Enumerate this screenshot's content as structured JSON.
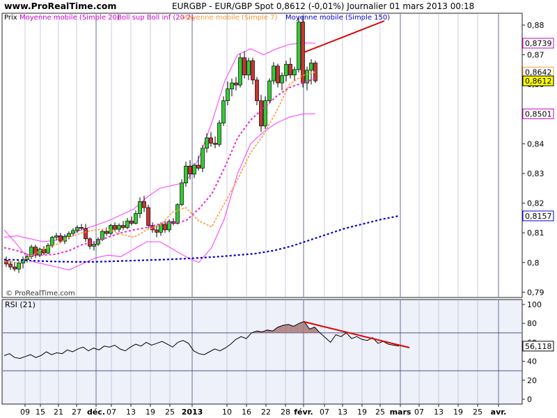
{
  "header": {
    "site": "www.ProRealTime.com",
    "title": "EURGBP - EUR/GBP Spot    0,8612 (-0,01%)     Journalier  01 mars 2013 00:18"
  },
  "price_panel": {
    "legend": [
      {
        "text": "Prix",
        "color": "#000000"
      },
      {
        "text": "Moyenne mobile (Simple 20)",
        "color": "#cc00cc"
      },
      {
        "text": "Boll sup Boll inf (20 2)",
        "color": "#cc00cc"
      },
      {
        "text": "Moyenne mobile (Simple 7)",
        "color": "#ff9933"
      },
      {
        "text": "Moyenne mobile (Simple 150)",
        "color": "#0000cc"
      }
    ],
    "watermark": "© ProRealTime.com",
    "yticks": [
      "0,88",
      "0,87",
      "0,86",
      "0,85",
      "0,84",
      "0,83",
      "0,82",
      "0,81",
      "0,8",
      "0,79"
    ],
    "price_labels": [
      {
        "text": "0,8739",
        "border": "#cc00cc",
        "bg": "#ffffff"
      },
      {
        "text": "0,8642",
        "border": "#ff9933",
        "bg": "#ffffff"
      },
      {
        "text": "0,8612",
        "border": "#000000",
        "bg": "#ffff00"
      },
      {
        "text": "0,8501",
        "border": "#cc00cc",
        "bg": "#ffffff"
      },
      {
        "text": "0,8157",
        "border": "#0000cc",
        "bg": "#ffffff"
      }
    ]
  },
  "rsi_panel": {
    "label": "RSI (21)",
    "yticks": [
      "100",
      "80",
      "60",
      "40",
      "20",
      "0"
    ],
    "value_label": "56,118"
  },
  "xaxis": {
    "ticks": [
      "09",
      "15",
      "21",
      "27",
      "déc.",
      "07",
      "13",
      "19",
      "25",
      "2013",
      "10",
      "16",
      "22",
      "28",
      "févr.",
      "07",
      "13",
      "19",
      "25",
      "mars",
      "07",
      "13",
      "19",
      "25",
      "avr."
    ],
    "bold_ticks": [
      "déc.",
      "2013",
      "févr.",
      "mars",
      "avr."
    ]
  },
  "colors": {
    "panel_bg": "#ffffff",
    "rsi_bg": "#eef0fa",
    "grid": "#a8aecb",
    "bull": "#33cc33",
    "bear": "#cc3333",
    "bollinger": "#ff33ff",
    "sma20": "#ee22cc",
    "sma7": "#ff9933",
    "sma150": "#0000cc",
    "rsi_line": "#000000",
    "trendline": "#dd0000",
    "rsi_fill": "#a87878"
  },
  "chart_data": [
    {
      "type": "candlestick",
      "title": "EURGBP - EUR/GBP Spot",
      "ylim": [
        0.788,
        0.885
      ],
      "last_close": 0.8612,
      "change": "-0,01%",
      "candles": [
        {
          "o": 0.8008,
          "h": 0.802,
          "l": 0.7985,
          "c": 0.7995
        },
        {
          "o": 0.7995,
          "h": 0.8005,
          "l": 0.7975,
          "c": 0.7985
        },
        {
          "o": 0.7985,
          "h": 0.8002,
          "l": 0.797,
          "c": 0.7978
        },
        {
          "o": 0.7978,
          "h": 0.8005,
          "l": 0.7965,
          "c": 0.7998
        },
        {
          "o": 0.7998,
          "h": 0.802,
          "l": 0.798,
          "c": 0.801
        },
        {
          "o": 0.801,
          "h": 0.803,
          "l": 0.8,
          "c": 0.802
        },
        {
          "o": 0.802,
          "h": 0.806,
          "l": 0.8012,
          "c": 0.8052
        },
        {
          "o": 0.8052,
          "h": 0.806,
          "l": 0.8015,
          "c": 0.8025
        },
        {
          "o": 0.8025,
          "h": 0.805,
          "l": 0.8018,
          "c": 0.8045
        },
        {
          "o": 0.8045,
          "h": 0.8055,
          "l": 0.8025,
          "c": 0.8032
        },
        {
          "o": 0.8032,
          "h": 0.8065,
          "l": 0.8028,
          "c": 0.8058
        },
        {
          "o": 0.8058,
          "h": 0.809,
          "l": 0.805,
          "c": 0.8085
        },
        {
          "o": 0.8085,
          "h": 0.81,
          "l": 0.8075,
          "c": 0.809
        },
        {
          "o": 0.809,
          "h": 0.81,
          "l": 0.8065,
          "c": 0.8072
        },
        {
          "o": 0.8072,
          "h": 0.8095,
          "l": 0.8062,
          "c": 0.8088
        },
        {
          "o": 0.8088,
          "h": 0.8105,
          "l": 0.8078,
          "c": 0.8098
        },
        {
          "o": 0.8098,
          "h": 0.8115,
          "l": 0.8088,
          "c": 0.8108
        },
        {
          "o": 0.8108,
          "h": 0.8125,
          "l": 0.81,
          "c": 0.8118
        },
        {
          "o": 0.8118,
          "h": 0.813,
          "l": 0.811,
          "c": 0.8115
        },
        {
          "o": 0.8115,
          "h": 0.813,
          "l": 0.807,
          "c": 0.808
        },
        {
          "o": 0.808,
          "h": 0.8085,
          "l": 0.8045,
          "c": 0.8055
        },
        {
          "o": 0.8055,
          "h": 0.807,
          "l": 0.804,
          "c": 0.8062
        },
        {
          "o": 0.8062,
          "h": 0.8085,
          "l": 0.8055,
          "c": 0.8078
        },
        {
          "o": 0.8078,
          "h": 0.811,
          "l": 0.8072,
          "c": 0.8105
        },
        {
          "o": 0.8105,
          "h": 0.8118,
          "l": 0.809,
          "c": 0.8098
        },
        {
          "o": 0.8098,
          "h": 0.813,
          "l": 0.8092,
          "c": 0.8125
        },
        {
          "o": 0.8125,
          "h": 0.8135,
          "l": 0.8105,
          "c": 0.8112
        },
        {
          "o": 0.8112,
          "h": 0.8132,
          "l": 0.8102,
          "c": 0.8125
        },
        {
          "o": 0.8125,
          "h": 0.814,
          "l": 0.811,
          "c": 0.8118
        },
        {
          "o": 0.8118,
          "h": 0.815,
          "l": 0.8112,
          "c": 0.814
        },
        {
          "o": 0.814,
          "h": 0.8155,
          "l": 0.8125,
          "c": 0.8132
        },
        {
          "o": 0.8132,
          "h": 0.8175,
          "l": 0.8128,
          "c": 0.8165
        },
        {
          "o": 0.8165,
          "h": 0.822,
          "l": 0.815,
          "c": 0.8205
        },
        {
          "o": 0.8205,
          "h": 0.8225,
          "l": 0.817,
          "c": 0.8185
        },
        {
          "o": 0.8185,
          "h": 0.8195,
          "l": 0.8115,
          "c": 0.8125
        },
        {
          "o": 0.8125,
          "h": 0.8135,
          "l": 0.81,
          "c": 0.811
        },
        {
          "o": 0.811,
          "h": 0.8125,
          "l": 0.8085,
          "c": 0.8102
        },
        {
          "o": 0.8102,
          "h": 0.8135,
          "l": 0.809,
          "c": 0.8128
        },
        {
          "o": 0.8128,
          "h": 0.814,
          "l": 0.81,
          "c": 0.811
        },
        {
          "o": 0.811,
          "h": 0.8145,
          "l": 0.8102,
          "c": 0.8138
        },
        {
          "o": 0.8138,
          "h": 0.815,
          "l": 0.8125,
          "c": 0.8132
        },
        {
          "o": 0.8132,
          "h": 0.82,
          "l": 0.8128,
          "c": 0.8195
        },
        {
          "o": 0.8195,
          "h": 0.828,
          "l": 0.819,
          "c": 0.8268
        },
        {
          "o": 0.8268,
          "h": 0.834,
          "l": 0.8255,
          "c": 0.8325
        },
        {
          "o": 0.8325,
          "h": 0.8345,
          "l": 0.828,
          "c": 0.8298
        },
        {
          "o": 0.8298,
          "h": 0.8335,
          "l": 0.8285,
          "c": 0.8328
        },
        {
          "o": 0.8328,
          "h": 0.836,
          "l": 0.831,
          "c": 0.8318
        },
        {
          "o": 0.8318,
          "h": 0.8395,
          "l": 0.8305,
          "c": 0.8385
        },
        {
          "o": 0.8385,
          "h": 0.8435,
          "l": 0.837,
          "c": 0.842
        },
        {
          "o": 0.842,
          "h": 0.844,
          "l": 0.839,
          "c": 0.8402
        },
        {
          "o": 0.8402,
          "h": 0.8425,
          "l": 0.8385,
          "c": 0.8398
        },
        {
          "o": 0.8398,
          "h": 0.848,
          "l": 0.839,
          "c": 0.847
        },
        {
          "o": 0.847,
          "h": 0.856,
          "l": 0.846,
          "c": 0.8545
        },
        {
          "o": 0.8545,
          "h": 0.861,
          "l": 0.853,
          "c": 0.8585
        },
        {
          "o": 0.8585,
          "h": 0.862,
          "l": 0.856,
          "c": 0.8605
        },
        {
          "o": 0.8605,
          "h": 0.8625,
          "l": 0.858,
          "c": 0.8598
        },
        {
          "o": 0.8598,
          "h": 0.8705,
          "l": 0.859,
          "c": 0.869
        },
        {
          "o": 0.869,
          "h": 0.8712,
          "l": 0.862,
          "c": 0.8632
        },
        {
          "o": 0.8632,
          "h": 0.869,
          "l": 0.8615,
          "c": 0.868
        },
        {
          "o": 0.868,
          "h": 0.869,
          "l": 0.86,
          "c": 0.8615
        },
        {
          "o": 0.8615,
          "h": 0.8625,
          "l": 0.853,
          "c": 0.8545
        },
        {
          "o": 0.8545,
          "h": 0.8565,
          "l": 0.844,
          "c": 0.846
        },
        {
          "o": 0.846,
          "h": 0.856,
          "l": 0.845,
          "c": 0.8545
        },
        {
          "o": 0.8545,
          "h": 0.862,
          "l": 0.8535,
          "c": 0.8612
        },
        {
          "o": 0.8612,
          "h": 0.8675,
          "l": 0.86,
          "c": 0.8662
        },
        {
          "o": 0.8662,
          "h": 0.867,
          "l": 0.859,
          "c": 0.8605
        },
        {
          "o": 0.8605,
          "h": 0.864,
          "l": 0.858,
          "c": 0.863
        },
        {
          "o": 0.863,
          "h": 0.868,
          "l": 0.861,
          "c": 0.8668
        },
        {
          "o": 0.8668,
          "h": 0.869,
          "l": 0.862,
          "c": 0.8632
        },
        {
          "o": 0.8632,
          "h": 0.866,
          "l": 0.861,
          "c": 0.865
        },
        {
          "o": 0.865,
          "h": 0.883,
          "l": 0.864,
          "c": 0.881
        },
        {
          "o": 0.881,
          "h": 0.883,
          "l": 0.859,
          "c": 0.8605
        },
        {
          "o": 0.8605,
          "h": 0.866,
          "l": 0.858,
          "c": 0.8648
        },
        {
          "o": 0.8648,
          "h": 0.8685,
          "l": 0.86,
          "c": 0.8672
        },
        {
          "o": 0.8672,
          "h": 0.868,
          "l": 0.8605,
          "c": 0.8612
        }
      ],
      "bollinger_upper": [
        0.8085,
        0.809,
        0.808,
        0.807,
        0.8075,
        0.8095,
        0.811,
        0.8125,
        0.814,
        0.816,
        0.818,
        0.822,
        0.825,
        0.826,
        0.827,
        0.835,
        0.847,
        0.861,
        0.87,
        0.872,
        0.87,
        0.872,
        0.8735,
        0.874,
        0.8739
      ],
      "bollinger_lower": [
        0.811,
        0.806,
        0.8005,
        0.7995,
        0.7985,
        0.7975,
        0.7995,
        0.8015,
        0.8025,
        0.802,
        0.8045,
        0.807,
        0.807,
        0.8045,
        0.802,
        0.8,
        0.805,
        0.815,
        0.83,
        0.84,
        0.844,
        0.847,
        0.849,
        0.85,
        0.8501
      ],
      "sma20": [
        0.805,
        0.804,
        0.8025,
        0.8025,
        0.8028,
        0.804,
        0.806,
        0.807,
        0.8085,
        0.81,
        0.811,
        0.8118,
        0.813,
        0.8135,
        0.814,
        0.818,
        0.823,
        0.832,
        0.842,
        0.848,
        0.852,
        0.856,
        0.859,
        0.8605,
        0.862
      ],
      "sma7": [
        0.8005,
        0.8,
        0.802,
        0.8045,
        0.806,
        0.8085,
        0.81,
        0.811,
        0.8112,
        0.8095,
        0.8085,
        0.811,
        0.8125,
        0.817,
        0.8185,
        0.814,
        0.812,
        0.82,
        0.828,
        0.837,
        0.843,
        0.851,
        0.86,
        0.863,
        0.8642
      ],
      "sma150": [
        0.801,
        0.8008,
        0.8005,
        0.8003,
        0.8002,
        0.8002,
        0.8004,
        0.8006,
        0.8008,
        0.801,
        0.8013,
        0.8016,
        0.802,
        0.8025,
        0.803,
        0.804,
        0.8055,
        0.8075,
        0.8095,
        0.8115,
        0.813,
        0.8145,
        0.8157
      ]
    },
    {
      "type": "line",
      "title": "RSI (21)",
      "ylim": [
        0,
        100
      ],
      "levels": [
        70,
        30
      ],
      "values": [
        46,
        48,
        44,
        43,
        45,
        47,
        44,
        46,
        50,
        47,
        49,
        48,
        52,
        50,
        53,
        55,
        51,
        54,
        52,
        56,
        55,
        57,
        53,
        51,
        55,
        58,
        56,
        60,
        57,
        59,
        61,
        58,
        55,
        60,
        62,
        59,
        51,
        48,
        47,
        50,
        53,
        51,
        54,
        58,
        63,
        66,
        64,
        70,
        72,
        71,
        73,
        72,
        76,
        78,
        79,
        77,
        80,
        82,
        74,
        76,
        70,
        65,
        60,
        68,
        66,
        70,
        64,
        66,
        63,
        62,
        65,
        59,
        61,
        58,
        57,
        56
      ]
    }
  ]
}
